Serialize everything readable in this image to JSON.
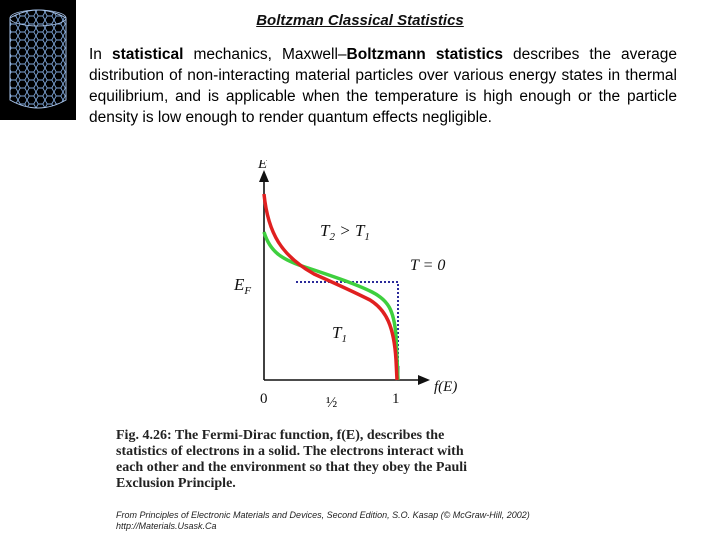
{
  "slide": {
    "title": "Boltzman Classical Statistics",
    "intro": {
      "p1": "In ",
      "b1": "statistical",
      "p2": " mechanics, Maxwell–",
      "b2": "Boltzmann",
      "p3": " ",
      "b3": "statistics",
      "p4": " describes the average distribution of non-interacting material particles over various energy states in thermal equilibrium, and is applicable when the temperature is high enough or the particle density is low enough to render quantum effects negligible."
    }
  },
  "figure": {
    "y_axis_label": "E",
    "x_axis_label": "f(E)",
    "fermi_label": "E",
    "fermi_sub": "F",
    "tick_0": "0",
    "tick_half": "½",
    "tick_1": "1",
    "label_t2_main": "T",
    "label_t2_sub": "2",
    "label_t2_rel": " > T",
    "label_t2_sub2": "1",
    "label_t0": "T = 0",
    "label_t1_main": "T",
    "label_t1_sub": "1",
    "colors": {
      "hot_curve": "#e02020",
      "warm_curve": "#3ecf3e",
      "zero_temp": "#2b2b9a",
      "axis": "#111111"
    }
  },
  "caption": {
    "line1": "Fig. 4.26: The Fermi-Dirac function, f(E), describes the",
    "line2": "statistics of electrons in a solid. The electrons interact with",
    "line3": "each other and the environment so that they obey the Pauli",
    "line4": "Exclusion Principle."
  },
  "source": {
    "line1": "From Principles of Electronic Materials and Devices, Second Edition, S.O. Kasap (© McGraw-Hill, 2002)",
    "line2": "http://Materials.Usask.Ca"
  }
}
